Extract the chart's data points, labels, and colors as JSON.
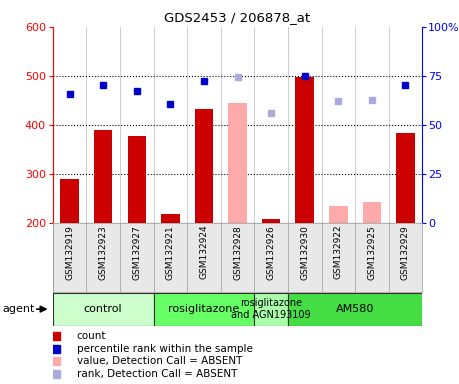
{
  "title": "GDS2453 / 206878_at",
  "samples": [
    "GSM132919",
    "GSM132923",
    "GSM132927",
    "GSM132921",
    "GSM132924",
    "GSM132928",
    "GSM132926",
    "GSM132930",
    "GSM132922",
    "GSM132925",
    "GSM132929"
  ],
  "bar_values": [
    290,
    390,
    378,
    218,
    432,
    null,
    207,
    497,
    null,
    null,
    383
  ],
  "bar_absent_values": [
    null,
    null,
    null,
    null,
    null,
    445,
    null,
    null,
    235,
    242,
    null
  ],
  "rank_values": [
    462,
    482,
    470,
    443,
    490,
    null,
    null,
    500,
    null,
    null,
    481
  ],
  "rank_absent_values": [
    null,
    null,
    null,
    null,
    null,
    497,
    425,
    null,
    449,
    450,
    null
  ],
  "ylim_left": [
    200,
    600
  ],
  "ylim_right": [
    0,
    100
  ],
  "yticks_left": [
    200,
    300,
    400,
    500,
    600
  ],
  "yticks_right": [
    0,
    25,
    50,
    75,
    100
  ],
  "groups": [
    {
      "label": "control",
      "start": 0,
      "end": 3,
      "color": "#ccffcc"
    },
    {
      "label": "rosiglitazone",
      "start": 3,
      "end": 6,
      "color": "#66ff66"
    },
    {
      "label": "rosiglitazone\nand AGN193109",
      "start": 6,
      "end": 7,
      "color": "#aaffaa"
    },
    {
      "label": "AM580",
      "start": 7,
      "end": 11,
      "color": "#44dd44"
    }
  ],
  "bar_color": "#cc0000",
  "bar_absent_color": "#ffaaaa",
  "rank_color": "#0000cc",
  "rank_absent_color": "#aaaadd",
  "agent_label": "agent",
  "legend_items": [
    {
      "label": "count",
      "color": "#cc0000"
    },
    {
      "label": "percentile rank within the sample",
      "color": "#0000cc"
    },
    {
      "label": "value, Detection Call = ABSENT",
      "color": "#ffaaaa"
    },
    {
      "label": "rank, Detection Call = ABSENT",
      "color": "#aaaadd"
    }
  ],
  "bar_width": 0.55,
  "background_color": "#e8e8e8"
}
